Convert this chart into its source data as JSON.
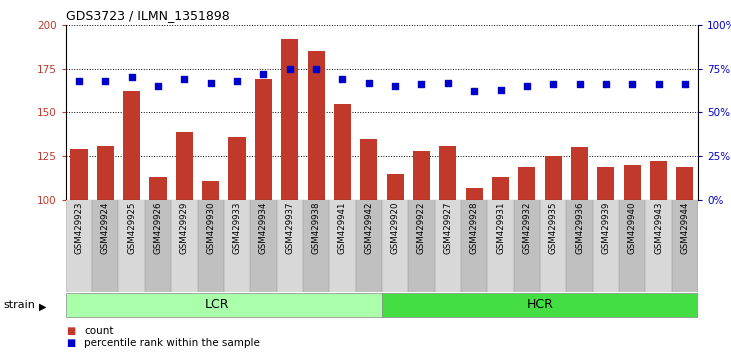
{
  "title": "GDS3723 / ILMN_1351898",
  "samples": [
    "GSM429923",
    "GSM429924",
    "GSM429925",
    "GSM429926",
    "GSM429929",
    "GSM429930",
    "GSM429933",
    "GSM429934",
    "GSM429937",
    "GSM429938",
    "GSM429941",
    "GSM429942",
    "GSM429920",
    "GSM429922",
    "GSM429927",
    "GSM429928",
    "GSM429931",
    "GSM429932",
    "GSM429935",
    "GSM429936",
    "GSM429939",
    "GSM429940",
    "GSM429943",
    "GSM429944"
  ],
  "bar_values": [
    129,
    131,
    162,
    113,
    139,
    111,
    136,
    169,
    192,
    185,
    155,
    135,
    115,
    128,
    131,
    107,
    113,
    119,
    125,
    130,
    119,
    120,
    122,
    119
  ],
  "dot_values": [
    68,
    68,
    70,
    65,
    69,
    67,
    68,
    72,
    75,
    75,
    69,
    67,
    65,
    66,
    67,
    62,
    63,
    65,
    66,
    66,
    66,
    66,
    66,
    66
  ],
  "bar_color": "#C0392B",
  "dot_color": "#0000CC",
  "ylim_left": [
    100,
    200
  ],
  "ylim_right": [
    0,
    100
  ],
  "yticks_left": [
    100,
    125,
    150,
    175,
    200
  ],
  "yticks_right": [
    0,
    25,
    50,
    75,
    100
  ],
  "yticklabels_right": [
    "0%",
    "25%",
    "50%",
    "75%",
    "100%"
  ],
  "lcr_count": 12,
  "hcr_count": 12,
  "lcr_color": "#AAFFAA",
  "hcr_color": "#44DD44",
  "legend_count": "count",
  "legend_percentile": "percentile rank within the sample",
  "bar_color_legend": "#C0392B",
  "dot_color_legend": "#0000CC",
  "tick_color_left": "#C0392B",
  "tick_color_right": "#0000CC",
  "grid_color": "#000000",
  "label_bg_even": "#D8D8D8",
  "label_bg_odd": "#C0C0C0"
}
